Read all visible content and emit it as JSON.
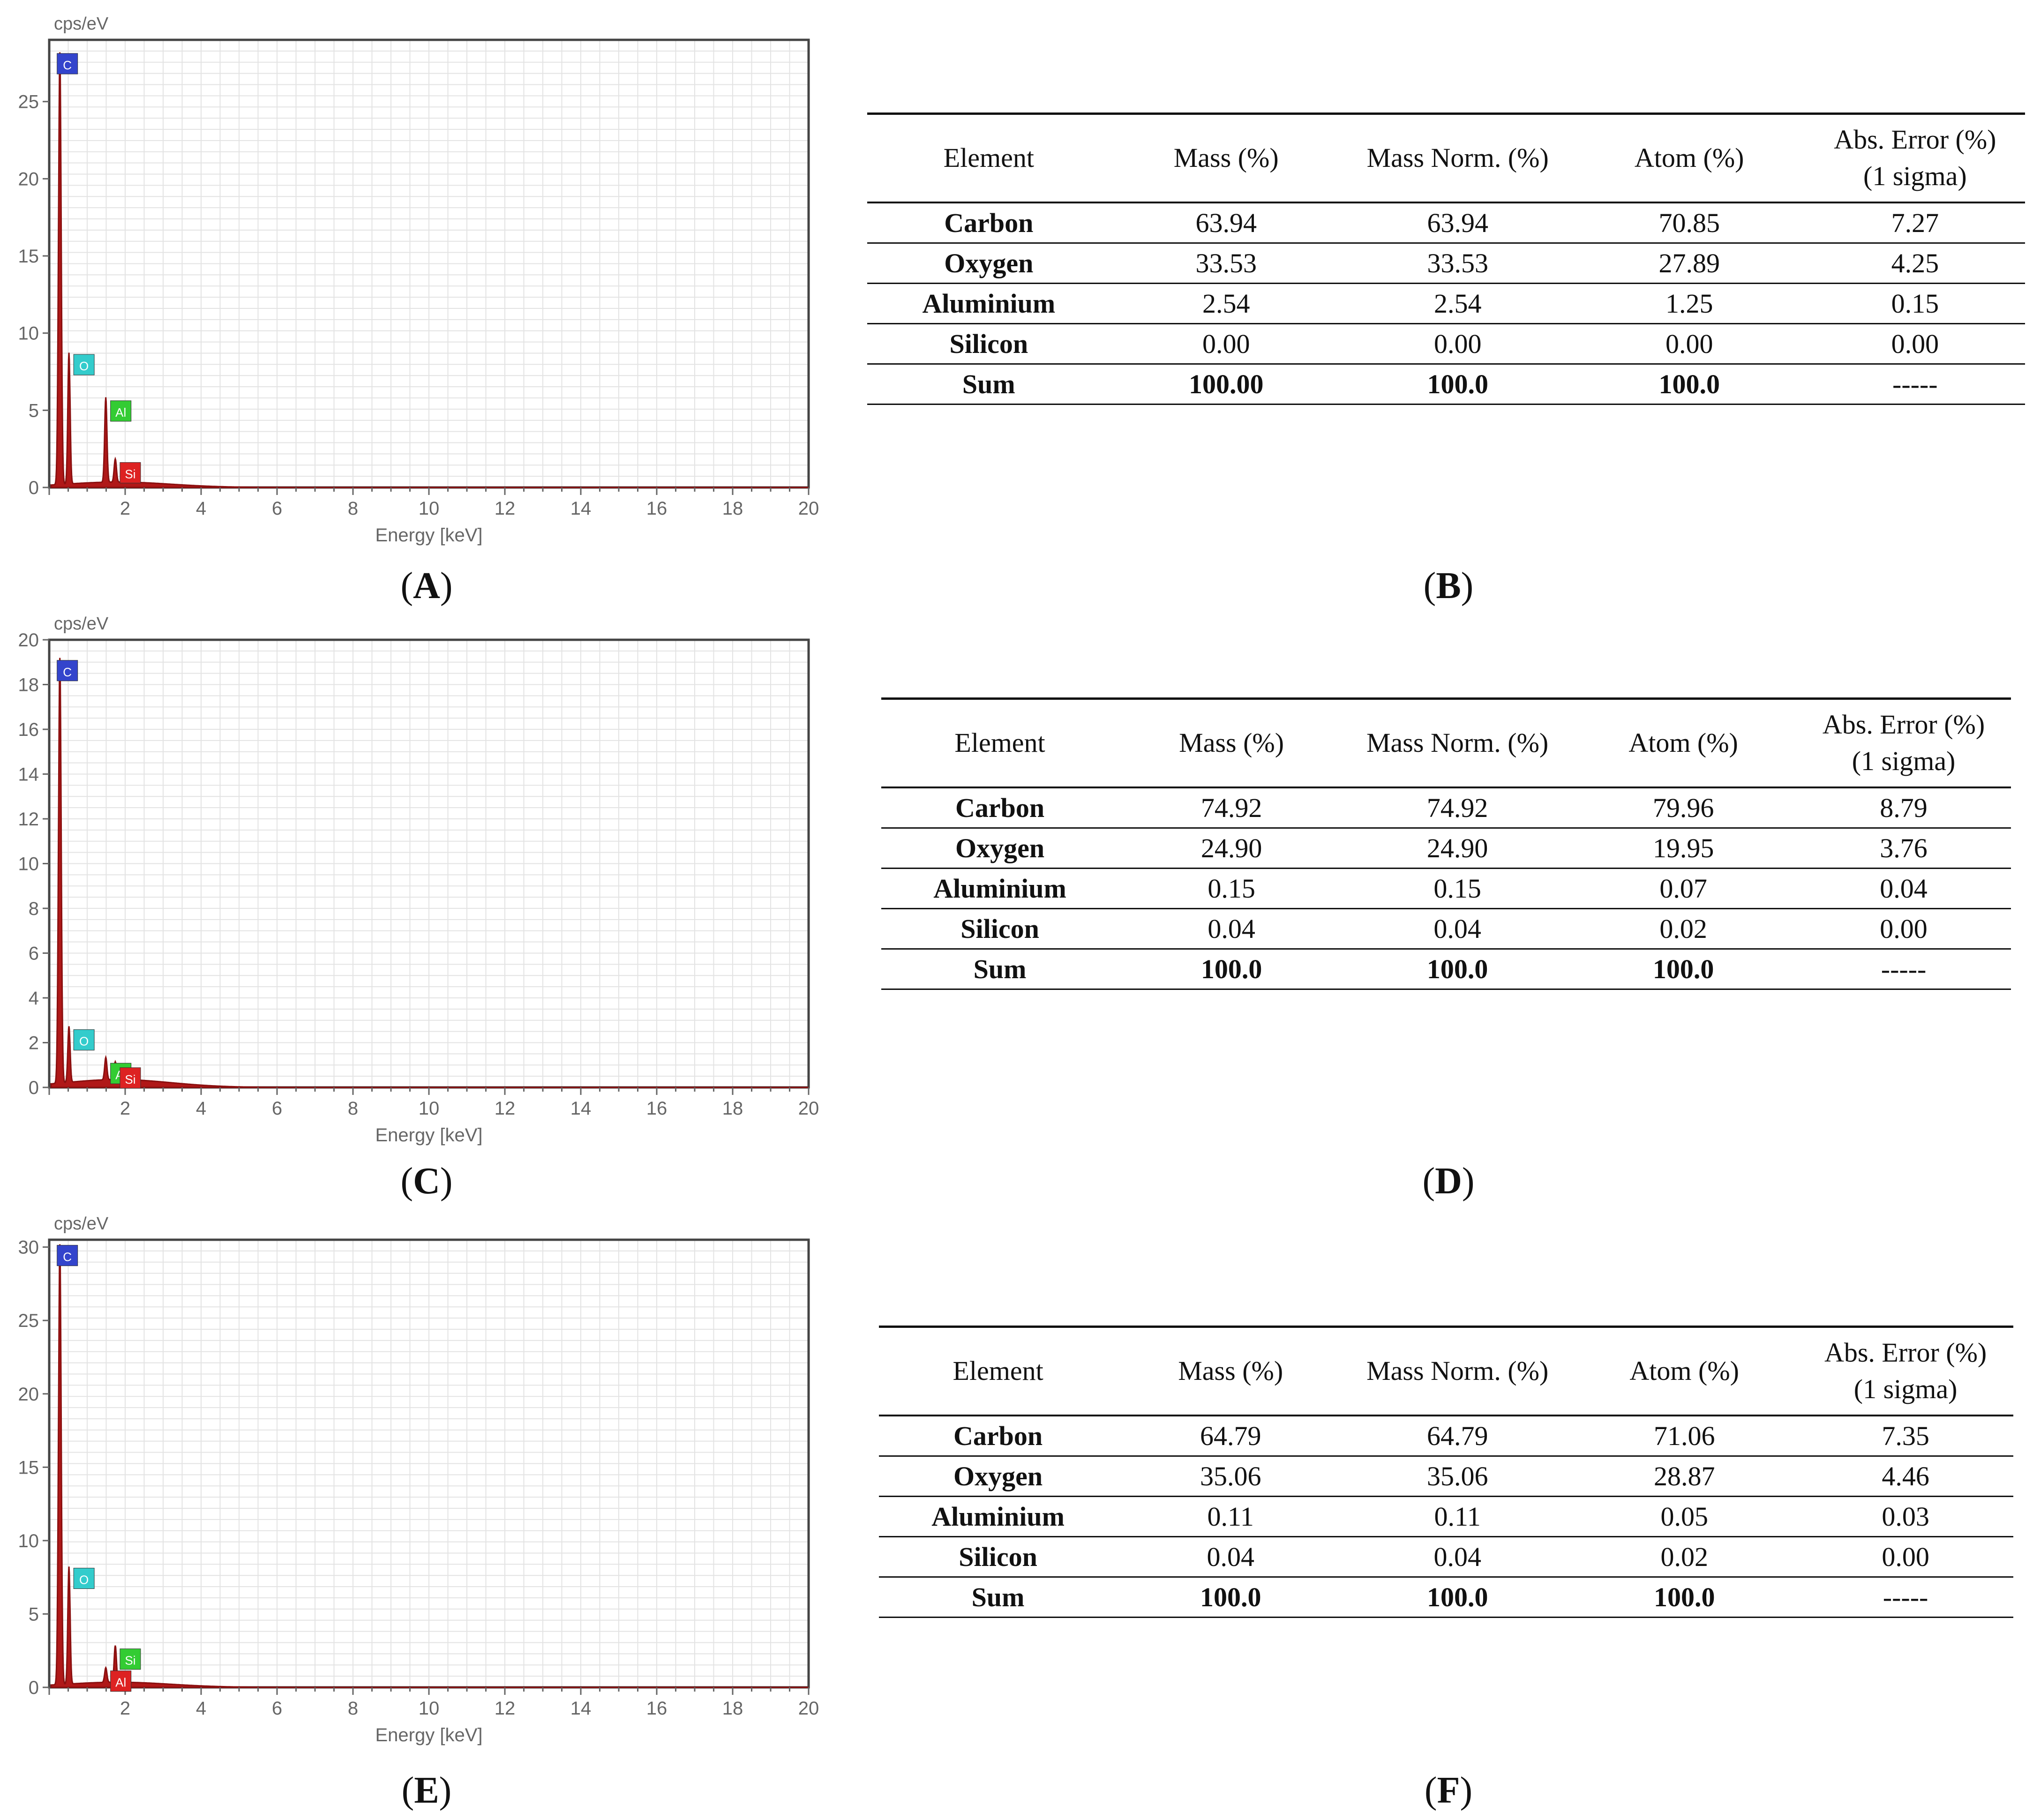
{
  "chart_data": [
    {
      "id": "A",
      "type": "line",
      "ylabel": "cps/eV",
      "xlabel": "Energy [keV]",
      "xlim": [
        0,
        20
      ],
      "ylim": [
        0,
        29
      ],
      "yticks": [
        0,
        5,
        10,
        15,
        20,
        25
      ],
      "xticks": [
        2,
        4,
        6,
        8,
        10,
        12,
        14,
        16,
        18,
        20
      ],
      "grid": true,
      "peaks": [
        {
          "label": "C",
          "energy": 0.28,
          "height": 28.0,
          "color": "#3344cc"
        },
        {
          "label": "O",
          "energy": 0.52,
          "height": 8.5,
          "color": "#33cccc"
        },
        {
          "label": "Al",
          "energy": 1.49,
          "height": 5.5,
          "color": "#33cc33"
        },
        {
          "label": "Si",
          "energy": 1.74,
          "height": 1.5,
          "color": "#dd2222"
        }
      ]
    },
    {
      "id": "C",
      "type": "line",
      "ylabel": "cps/eV",
      "xlabel": "Energy [keV]",
      "xlim": [
        0,
        20
      ],
      "ylim": [
        0,
        20
      ],
      "yticks": [
        0,
        2,
        4,
        6,
        8,
        10,
        12,
        14,
        16,
        18,
        20
      ],
      "xticks": [
        2,
        4,
        6,
        8,
        10,
        12,
        14,
        16,
        18,
        20
      ],
      "grid": true,
      "peaks": [
        {
          "label": "C",
          "energy": 0.28,
          "height": 19.0,
          "color": "#3344cc"
        },
        {
          "label": "O",
          "energy": 0.52,
          "height": 2.5,
          "color": "#33cccc"
        },
        {
          "label": "Al",
          "energy": 1.49,
          "height": 1.0,
          "color": "#33cc33"
        },
        {
          "label": "Si",
          "energy": 1.74,
          "height": 0.8,
          "color": "#dd2222"
        }
      ]
    },
    {
      "id": "E",
      "type": "line",
      "ylabel": "cps/eV",
      "xlabel": "Energy [keV]",
      "xlim": [
        0,
        20
      ],
      "ylim": [
        0,
        30.5
      ],
      "yticks": [
        0,
        5,
        10,
        15,
        20,
        25,
        30
      ],
      "xticks": [
        2,
        4,
        6,
        8,
        10,
        12,
        14,
        16,
        18,
        20
      ],
      "grid": true,
      "peaks": [
        {
          "label": "C",
          "energy": 0.28,
          "height": 30.0,
          "color": "#3344cc"
        },
        {
          "label": "O",
          "energy": 0.52,
          "height": 8.0,
          "color": "#33cccc"
        },
        {
          "label": "Si",
          "energy": 1.74,
          "height": 2.5,
          "color": "#33cc33"
        },
        {
          "label": "Al",
          "energy": 1.49,
          "height": 1.0,
          "color": "#dd2222"
        }
      ]
    }
  ],
  "panel_labels": {
    "A": "A",
    "B": "B",
    "C": "C",
    "D": "D",
    "E": "E",
    "F": "F"
  },
  "table_headers": {
    "element": "Element",
    "mass": "Mass (%)",
    "mass_norm": "Mass Norm. (%)",
    "atom": "Atom (%)",
    "abs_error_1": "Abs. Error (%)",
    "abs_error_2": "(1 sigma)"
  },
  "tables": {
    "B": {
      "rows": [
        {
          "element": "Carbon",
          "mass": "63.94",
          "mass_norm": "63.94",
          "atom": "70.85",
          "err": "7.27"
        },
        {
          "element": "Oxygen",
          "mass": "33.53",
          "mass_norm": "33.53",
          "atom": "27.89",
          "err": "4.25"
        },
        {
          "element": "Aluminium",
          "mass": "2.54",
          "mass_norm": "2.54",
          "atom": "1.25",
          "err": "0.15"
        },
        {
          "element": "Silicon",
          "mass": "0.00",
          "mass_norm": "0.00",
          "atom": "0.00",
          "err": "0.00"
        },
        {
          "element": "Sum",
          "mass": "100.00",
          "mass_norm": "100.0",
          "atom": "100.0",
          "err": "-----"
        }
      ]
    },
    "D": {
      "rows": [
        {
          "element": "Carbon",
          "mass": "74.92",
          "mass_norm": "74.92",
          "atom": "79.96",
          "err": "8.79"
        },
        {
          "element": "Oxygen",
          "mass": "24.90",
          "mass_norm": "24.90",
          "atom": "19.95",
          "err": "3.76"
        },
        {
          "element": "Aluminium",
          "mass": "0.15",
          "mass_norm": "0.15",
          "atom": "0.07",
          "err": "0.04"
        },
        {
          "element": "Silicon",
          "mass": "0.04",
          "mass_norm": "0.04",
          "atom": "0.02",
          "err": "0.00"
        },
        {
          "element": "Sum",
          "mass": "100.0",
          "mass_norm": "100.0",
          "atom": "100.0",
          "err": "-----"
        }
      ]
    },
    "F": {
      "rows": [
        {
          "element": "Carbon",
          "mass": "64.79",
          "mass_norm": "64.79",
          "atom": "71.06",
          "err": "7.35"
        },
        {
          "element": "Oxygen",
          "mass": "35.06",
          "mass_norm": "35.06",
          "atom": "28.87",
          "err": "4.46"
        },
        {
          "element": "Aluminium",
          "mass": "0.11",
          "mass_norm": "0.11",
          "atom": "0.05",
          "err": "0.03"
        },
        {
          "element": "Silicon",
          "mass": "0.04",
          "mass_norm": "0.04",
          "atom": "0.02",
          "err": "0.00"
        },
        {
          "element": "Sum",
          "mass": "100.0",
          "mass_norm": "100.0",
          "atom": "100.0",
          "err": "-----"
        }
      ]
    }
  }
}
